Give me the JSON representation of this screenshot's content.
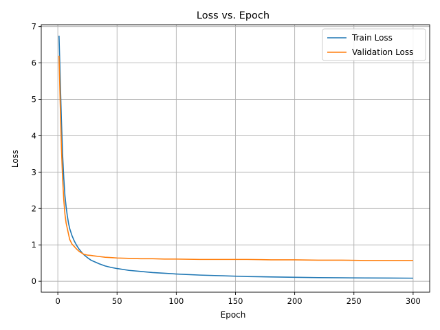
{
  "chart_data": {
    "type": "line",
    "title": "Loss vs. Epoch",
    "xlabel": "Epoch",
    "ylabel": "Loss",
    "xlim": [
      -14,
      314
    ],
    "ylim": [
      -0.3,
      7.05
    ],
    "xticks": [
      0,
      50,
      100,
      150,
      200,
      250,
      300
    ],
    "yticks": [
      0,
      1,
      2,
      3,
      4,
      5,
      6,
      7
    ],
    "grid": true,
    "legend_position": "top-right",
    "series": [
      {
        "name": "Train Loss",
        "color": "#1f77b4",
        "x": [
          1,
          2,
          3,
          4,
          5,
          6,
          7,
          8,
          9,
          10,
          12,
          14,
          16,
          18,
          20,
          22,
          25,
          28,
          30,
          35,
          40,
          45,
          50,
          60,
          70,
          80,
          90,
          100,
          120,
          140,
          160,
          180,
          200,
          220,
          240,
          260,
          280,
          300
        ],
        "values": [
          6.75,
          5.6,
          4.45,
          3.5,
          2.85,
          2.35,
          2.05,
          1.8,
          1.6,
          1.45,
          1.25,
          1.1,
          0.98,
          0.88,
          0.8,
          0.73,
          0.65,
          0.58,
          0.55,
          0.48,
          0.42,
          0.38,
          0.35,
          0.3,
          0.27,
          0.24,
          0.22,
          0.2,
          0.17,
          0.15,
          0.13,
          0.12,
          0.11,
          0.1,
          0.095,
          0.09,
          0.088,
          0.085
        ]
      },
      {
        "name": "Validation Loss",
        "color": "#ff7f0e",
        "x": [
          1,
          2,
          3,
          4,
          5,
          6,
          7,
          8,
          9,
          10,
          12,
          14,
          16,
          18,
          20,
          22,
          25,
          28,
          30,
          35,
          40,
          45,
          50,
          60,
          70,
          80,
          90,
          100,
          120,
          140,
          160,
          180,
          200,
          220,
          240,
          260,
          280,
          300
        ],
        "values": [
          6.2,
          4.9,
          3.7,
          2.85,
          2.25,
          1.85,
          1.6,
          1.45,
          1.3,
          1.15,
          1.02,
          0.95,
          0.88,
          0.82,
          0.78,
          0.74,
          0.72,
          0.71,
          0.7,
          0.68,
          0.66,
          0.65,
          0.64,
          0.63,
          0.62,
          0.62,
          0.61,
          0.61,
          0.6,
          0.6,
          0.6,
          0.59,
          0.59,
          0.58,
          0.58,
          0.57,
          0.57,
          0.57
        ]
      }
    ]
  }
}
